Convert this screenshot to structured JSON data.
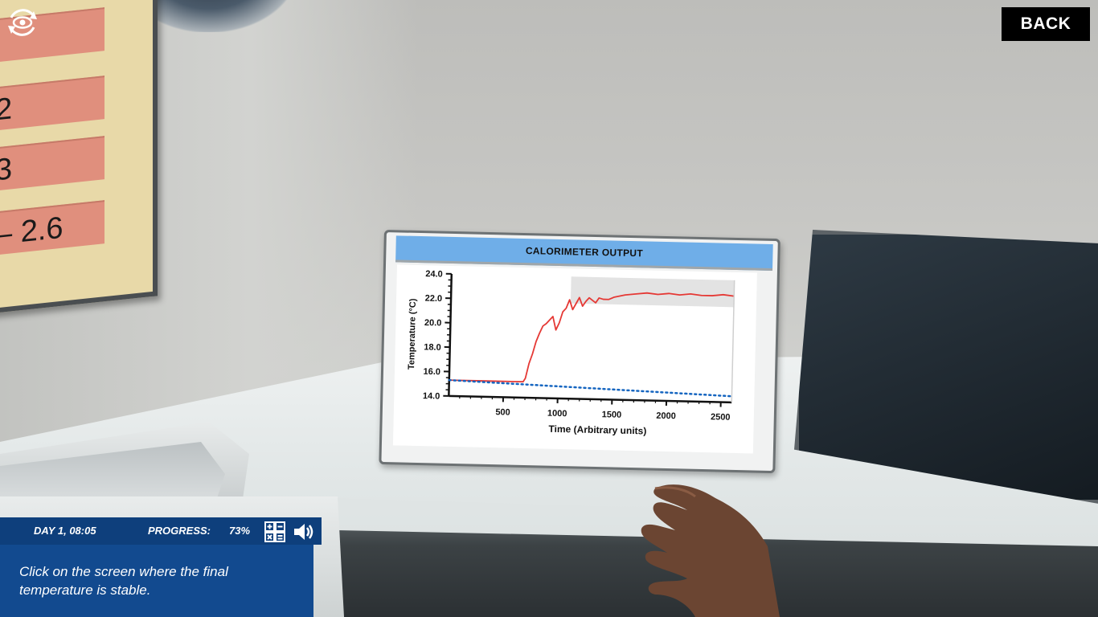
{
  "header": {
    "back_label": "BACK",
    "view_icon": "eye-rotate-icon"
  },
  "whiteboard": {
    "rows": [
      "2",
      "3",
      "– 2.6"
    ]
  },
  "tablet": {
    "title": "CALORIMETER OUTPUT"
  },
  "chart_data": {
    "type": "line",
    "title": "CALORIMETER OUTPUT",
    "xlabel": "Time (Arbitrary units)",
    "ylabel": "Temperature (°C)",
    "xlim": [
      0,
      2600
    ],
    "ylim": [
      14.0,
      24.0
    ],
    "x_ticks": [
      "500",
      "1000",
      "1500",
      "2000",
      "2500"
    ],
    "y_ticks": [
      "14.0",
      "16.0",
      "18.0",
      "20.0",
      "22.0",
      "24.0"
    ],
    "highlight_region": {
      "x": [
        1100,
        2600
      ],
      "y": [
        21.8,
        24.0
      ]
    },
    "series": [
      {
        "color": "#e53935",
        "x": [
          0,
          300,
          600,
          680,
          700,
          730,
          760,
          790,
          820,
          850,
          880,
          910,
          940,
          970,
          1000,
          1030,
          1060,
          1090,
          1120,
          1150,
          1180,
          1210,
          1240,
          1270,
          1300,
          1330,
          1360,
          1400,
          1450,
          1500,
          1600,
          1700,
          1800,
          1900,
          2000,
          2100,
          2200,
          2300,
          2400,
          2500,
          2600
        ],
        "y": [
          15.3,
          15.3,
          15.3,
          15.3,
          15.6,
          16.8,
          17.6,
          18.6,
          19.3,
          19.9,
          20.1,
          20.4,
          20.7,
          19.6,
          20.2,
          21.1,
          21.4,
          22.1,
          21.3,
          21.8,
          22.3,
          21.6,
          22.0,
          22.3,
          22.1,
          21.9,
          22.3,
          22.2,
          22.2,
          22.4,
          22.6,
          22.7,
          22.8,
          22.7,
          22.8,
          22.7,
          22.8,
          22.7,
          22.7,
          22.8,
          22.7
        ]
      },
      {
        "color": "#1565c0",
        "style": "dotted",
        "x": [
          0,
          2600
        ],
        "y": [
          15.3,
          14.5
        ]
      }
    ]
  },
  "status": {
    "day_time": "DAY 1, 08:05",
    "progress_label": "PROGRESS:",
    "progress_value": "73%",
    "calculator_icon": "calculator-icon",
    "sound_icon": "speaker-icon",
    "instruction": "Click on the screen where the final temperature is stable."
  }
}
